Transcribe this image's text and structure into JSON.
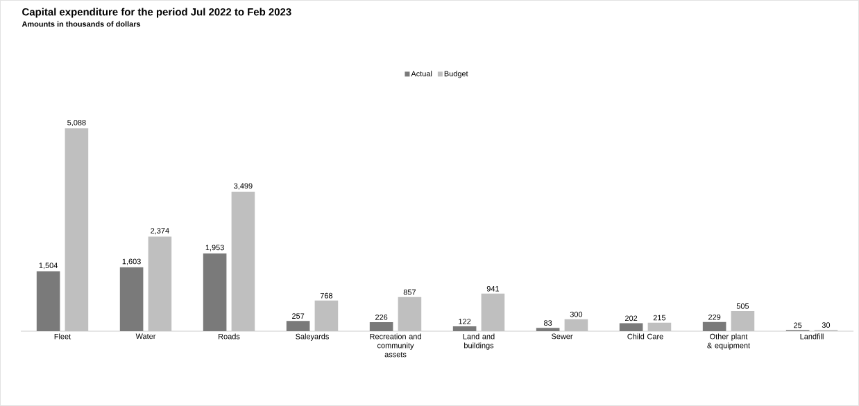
{
  "chart_data": {
    "type": "bar",
    "title": "Capital expenditure for the period Jul 2022 to Feb 2023",
    "subtitle": "Amounts in thousands of dollars",
    "categories": [
      "Fleet",
      "Water",
      "Roads",
      "Saleyards",
      "Recreation and community assets",
      "Land and buildings",
      "Sewer",
      "Child Care",
      "Other plant & equipment",
      "Landfill"
    ],
    "series": [
      {
        "name": "Actual",
        "color": "#7a7a7a",
        "values": [
          1504,
          1603,
          1953,
          257,
          226,
          122,
          83,
          202,
          229,
          25
        ],
        "value_labels": [
          "1,504",
          "1,603",
          "1,953",
          "257",
          "226",
          "122",
          "83",
          "202",
          "229",
          "25"
        ]
      },
      {
        "name": "Budget",
        "color": "#bfbfbf",
        "values": [
          5088,
          2374,
          3499,
          768,
          857,
          941,
          300,
          215,
          505,
          30
        ],
        "value_labels": [
          "5,088",
          "2,374",
          "3,499",
          "768",
          "857",
          "941",
          "300",
          "215",
          "505",
          "30"
        ]
      }
    ],
    "legend": "top"
  }
}
